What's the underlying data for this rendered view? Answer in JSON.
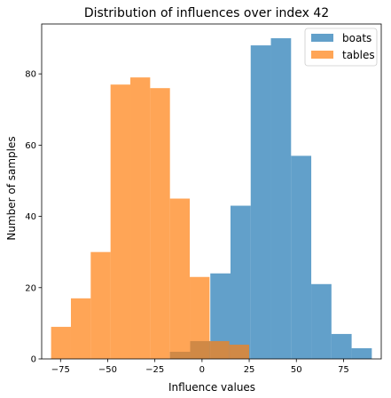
{
  "chart_data": {
    "type": "histogram",
    "title": "Distribution of influences over index 42",
    "xlabel": "Influence values",
    "ylabel": "Number of samples",
    "xlim": [
      -85,
      95
    ],
    "ylim": [
      0,
      94
    ],
    "xticks": [
      -75,
      -50,
      -25,
      0,
      25,
      50,
      75
    ],
    "yticks": [
      0,
      20,
      40,
      60,
      80
    ],
    "grid": false,
    "legend_position": "top-right",
    "series": [
      {
        "name": "boats",
        "color": "#1f77b4",
        "alpha": 0.7,
        "bin_edges": [
          -17,
          -6.3,
          4.4,
          15.1,
          25.8,
          36.5,
          47.2,
          57.9,
          68.6,
          79.3,
          90
        ],
        "values": [
          2,
          5,
          24,
          43,
          88,
          90,
          57,
          21,
          7,
          3
        ]
      },
      {
        "name": "tables",
        "color": "#ff7f0e",
        "alpha": 0.7,
        "bin_edges": [
          -80,
          -69.5,
          -59,
          -48.5,
          -38,
          -27.5,
          -17,
          -6.5,
          4,
          14.5,
          25
        ],
        "values": [
          9,
          17,
          30,
          77,
          79,
          76,
          45,
          23,
          5,
          4
        ]
      }
    ]
  }
}
